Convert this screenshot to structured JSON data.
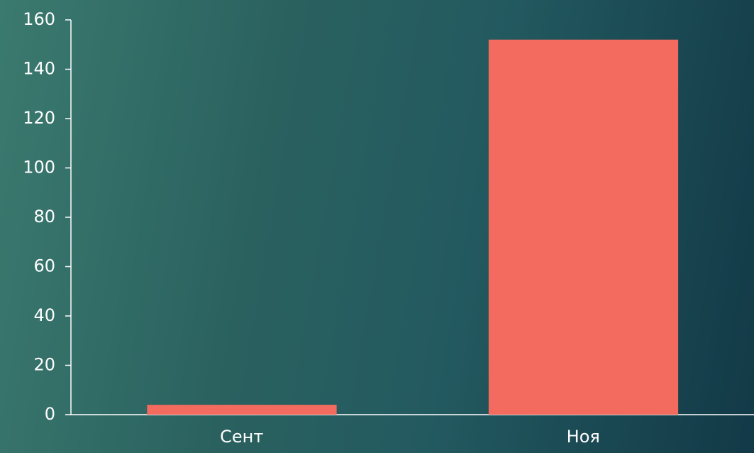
{
  "chart_data": {
    "type": "bar",
    "categories": [
      "Сент",
      "Ноя"
    ],
    "values": [
      4,
      152
    ],
    "color": "#f26b5e",
    "ylim": [
      0,
      160
    ],
    "yticks": [
      0,
      20,
      40,
      60,
      80,
      100,
      120,
      140,
      160
    ]
  }
}
